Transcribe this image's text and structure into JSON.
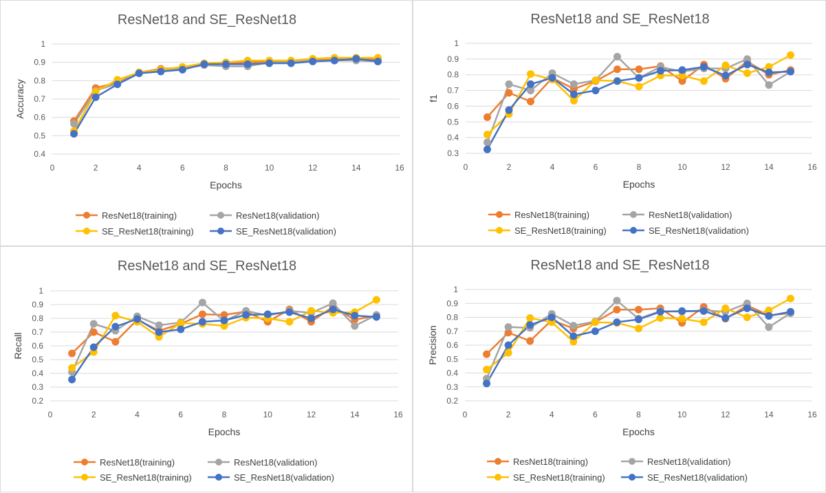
{
  "colors": {
    "resnet_training": "#ED7D31",
    "resnet_validation": "#A5A5A5",
    "se_training": "#FFC000",
    "se_validation": "#4472C4",
    "grid": "#d9d9d9"
  },
  "chart_data": [
    {
      "type": "line",
      "title": "ResNet18 and SE_ResNet18",
      "xlabel": "Epochs",
      "ylabel": "Accuracy",
      "xlim": [
        0,
        16
      ],
      "ylim": [
        0.4,
        1
      ],
      "x_ticks": [
        "0",
        "2",
        "4",
        "6",
        "8",
        "10",
        "12",
        "14",
        "16"
      ],
      "y_ticks": [
        "0.4",
        "0.5",
        "0.6",
        "0.7",
        "0.8",
        "0.9",
        "1"
      ],
      "grid": true,
      "legend_position": "bottom",
      "x": [
        1,
        2,
        3,
        4,
        5,
        6,
        7,
        8,
        9,
        10,
        11,
        12,
        13,
        14,
        15
      ],
      "series": [
        {
          "name": "ResNet18(training)",
          "color": "#ED7D31",
          "values": [
            0.58,
            0.76,
            0.79,
            0.845,
            0.865,
            0.87,
            0.89,
            0.895,
            0.9,
            0.905,
            0.905,
            0.915,
            0.92,
            0.92,
            0.915
          ]
        },
        {
          "name": "ResNet18(validation)",
          "color": "#A5A5A5",
          "values": [
            0.565,
            0.745,
            0.785,
            0.845,
            0.855,
            0.865,
            0.885,
            0.878,
            0.878,
            0.9,
            0.9,
            0.91,
            0.91,
            0.91,
            0.905
          ]
        },
        {
          "name": "SE_ResNet18(training)",
          "color": "#FFC000",
          "values": [
            0.525,
            0.74,
            0.805,
            0.845,
            0.86,
            0.875,
            0.895,
            0.9,
            0.91,
            0.91,
            0.91,
            0.92,
            0.925,
            0.925,
            0.925
          ]
        },
        {
          "name": "SE_ResNet18(validation)",
          "color": "#4472C4",
          "values": [
            0.51,
            0.71,
            0.78,
            0.84,
            0.85,
            0.86,
            0.89,
            0.89,
            0.89,
            0.895,
            0.895,
            0.905,
            0.91,
            0.92,
            0.905
          ]
        }
      ]
    },
    {
      "type": "line",
      "title": "ResNet18 and SE_ResNet18",
      "xlabel": "Epochs",
      "ylabel": "f1",
      "xlim": [
        0,
        16
      ],
      "ylim": [
        0.3,
        1
      ],
      "x_ticks": [
        "0",
        "2",
        "4",
        "6",
        "8",
        "10",
        "12",
        "14",
        "16"
      ],
      "y_ticks": [
        "0.3",
        "0.4",
        "0.5",
        "0.6",
        "0.7",
        "0.8",
        "0.9",
        "1"
      ],
      "grid": true,
      "legend_position": "bottom",
      "x": [
        1,
        2,
        3,
        4,
        5,
        6,
        7,
        8,
        9,
        10,
        11,
        12,
        13,
        14,
        15
      ],
      "series": [
        {
          "name": "ResNet18(training)",
          "color": "#ED7D31",
          "values": [
            0.53,
            0.685,
            0.63,
            0.78,
            0.71,
            0.76,
            0.835,
            0.835,
            0.855,
            0.76,
            0.865,
            0.775,
            0.885,
            0.8,
            0.83
          ]
        },
        {
          "name": "ResNet18(validation)",
          "color": "#A5A5A5",
          "values": [
            0.37,
            0.74,
            0.7,
            0.81,
            0.74,
            0.765,
            0.915,
            0.78,
            0.85,
            0.82,
            0.84,
            0.84,
            0.9,
            0.735,
            0.82
          ]
        },
        {
          "name": "SE_ResNet18(training)",
          "color": "#FFC000",
          "values": [
            0.42,
            0.55,
            0.805,
            0.77,
            0.635,
            0.765,
            0.76,
            0.725,
            0.795,
            0.795,
            0.76,
            0.86,
            0.81,
            0.85,
            0.925
          ]
        },
        {
          "name": "SE_ResNet18(validation)",
          "color": "#4472C4",
          "values": [
            0.325,
            0.575,
            0.74,
            0.78,
            0.675,
            0.7,
            0.76,
            0.78,
            0.825,
            0.83,
            0.85,
            0.795,
            0.865,
            0.815,
            0.82
          ]
        }
      ]
    },
    {
      "type": "line",
      "title": "ResNet18 and SE_ResNet18",
      "xlabel": "Epochs",
      "ylabel": "Recall",
      "xlim": [
        0,
        16
      ],
      "ylim": [
        0.2,
        1
      ],
      "x_ticks": [
        "0",
        "2",
        "4",
        "6",
        "8",
        "10",
        "12",
        "14",
        "16"
      ],
      "y_ticks": [
        "0.2",
        "0.3",
        "0.4",
        "0.5",
        "0.6",
        "0.7",
        "0.8",
        "0.9",
        "1"
      ],
      "grid": true,
      "legend_position": "bottom",
      "x": [
        1,
        2,
        3,
        4,
        5,
        6,
        7,
        8,
        9,
        10,
        11,
        12,
        13,
        14,
        15
      ],
      "series": [
        {
          "name": "ResNet18(training)",
          "color": "#ED7D31",
          "values": [
            0.545,
            0.7,
            0.63,
            0.79,
            0.71,
            0.76,
            0.83,
            0.825,
            0.85,
            0.775,
            0.865,
            0.775,
            0.885,
            0.79,
            0.82
          ]
        },
        {
          "name": "ResNet18(validation)",
          "color": "#A5A5A5",
          "values": [
            0.41,
            0.76,
            0.71,
            0.815,
            0.75,
            0.77,
            0.915,
            0.78,
            0.855,
            0.82,
            0.855,
            0.84,
            0.91,
            0.745,
            0.825
          ]
        },
        {
          "name": "SE_ResNet18(training)",
          "color": "#FFC000",
          "values": [
            0.44,
            0.555,
            0.82,
            0.775,
            0.665,
            0.765,
            0.76,
            0.745,
            0.805,
            0.8,
            0.775,
            0.855,
            0.84,
            0.845,
            0.935
          ]
        },
        {
          "name": "SE_ResNet18(validation)",
          "color": "#4472C4",
          "values": [
            0.355,
            0.59,
            0.74,
            0.795,
            0.7,
            0.72,
            0.775,
            0.785,
            0.825,
            0.83,
            0.845,
            0.8,
            0.865,
            0.82,
            0.81
          ]
        }
      ]
    },
    {
      "type": "line",
      "title": "ResNet18 and SE_ResNet18",
      "xlabel": "Epochs",
      "ylabel": "Precision",
      "xlim": [
        0,
        16
      ],
      "ylim": [
        0.2,
        1
      ],
      "x_ticks": [
        "0",
        "2",
        "4",
        "6",
        "8",
        "10",
        "12",
        "14",
        "16"
      ],
      "y_ticks": [
        "0.2",
        "0.3",
        "0.4",
        "0.5",
        "0.6",
        "0.7",
        "0.8",
        "0.9",
        "1"
      ],
      "grid": true,
      "legend_position": "bottom",
      "x": [
        1,
        2,
        3,
        4,
        5,
        6,
        7,
        8,
        9,
        10,
        11,
        12,
        13,
        14,
        15
      ],
      "series": [
        {
          "name": "ResNet18(training)",
          "color": "#ED7D31",
          "values": [
            0.535,
            0.69,
            0.63,
            0.78,
            0.72,
            0.765,
            0.855,
            0.855,
            0.865,
            0.76,
            0.875,
            0.79,
            0.885,
            0.815,
            0.83
          ]
        },
        {
          "name": "ResNet18(validation)",
          "color": "#A5A5A5",
          "values": [
            0.36,
            0.73,
            0.725,
            0.825,
            0.74,
            0.77,
            0.92,
            0.79,
            0.845,
            0.84,
            0.85,
            0.84,
            0.9,
            0.73,
            0.83
          ]
        },
        {
          "name": "SE_ResNet18(training)",
          "color": "#FFC000",
          "values": [
            0.425,
            0.545,
            0.795,
            0.765,
            0.625,
            0.765,
            0.76,
            0.72,
            0.795,
            0.79,
            0.765,
            0.865,
            0.8,
            0.85,
            0.935
          ]
        },
        {
          "name": "SE_ResNet18(validation)",
          "color": "#4472C4",
          "values": [
            0.325,
            0.6,
            0.745,
            0.8,
            0.665,
            0.7,
            0.765,
            0.785,
            0.84,
            0.845,
            0.845,
            0.795,
            0.865,
            0.81,
            0.84
          ]
        }
      ]
    }
  ]
}
